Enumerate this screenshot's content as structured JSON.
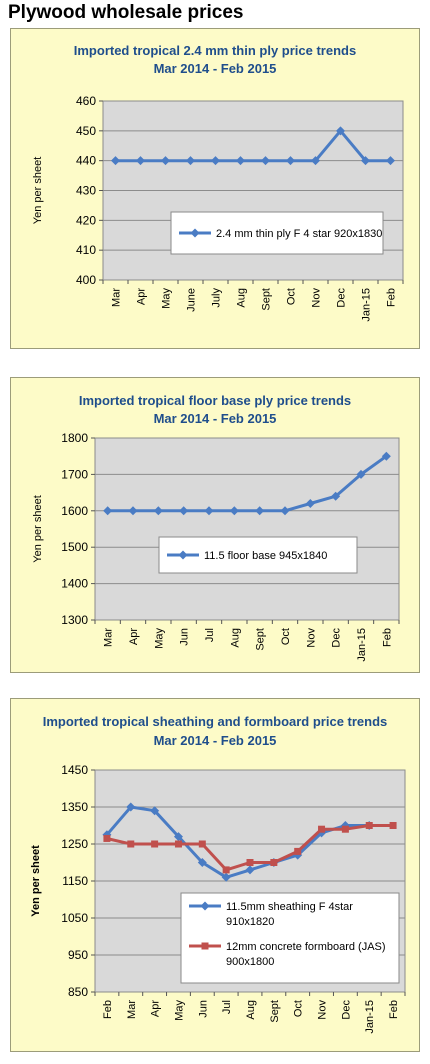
{
  "page": {
    "title": "Plywood wholesale prices"
  },
  "colors": {
    "blue": "#4a7cc4",
    "red": "#c0504d",
    "plot_bg": "#d9d9d9",
    "panel_bg": "#fdfbc8",
    "title_color": "#1f4e8c"
  },
  "chart_data": [
    {
      "type": "line",
      "title": "Imported tropical 2.4 mm thin ply price trends",
      "subtitle": "Mar 2014 - Feb 2015",
      "ylabel": "Yen per sheet",
      "ylim": [
        400,
        460
      ],
      "yticks": [
        400,
        410,
        420,
        430,
        440,
        450,
        460
      ],
      "categories": [
        "Mar",
        "Apr",
        "May",
        "June",
        "July",
        "Aug",
        "Sept",
        "Oct",
        "Nov",
        "Dec",
        "Jan-15",
        "Feb"
      ],
      "series": [
        {
          "name": "2.4 mm thin ply F 4 star 920x1830",
          "color": "#4a7cc4",
          "marker": "diamond",
          "values": [
            440,
            440,
            440,
            440,
            440,
            440,
            440,
            440,
            440,
            450,
            440,
            440
          ]
        }
      ],
      "legend": "center-right",
      "grid": true
    },
    {
      "type": "line",
      "title": "Imported tropical floor base ply price trends",
      "subtitle": "Mar 2014 - Feb 2015",
      "ylabel": "Yen per sheet",
      "ylim": [
        1300,
        1800
      ],
      "yticks": [
        1300,
        1400,
        1500,
        1600,
        1700,
        1800
      ],
      "categories": [
        "Mar",
        "Apr",
        "May",
        "Jun",
        "Jul",
        "Aug",
        "Sept",
        "Oct",
        "Nov",
        "Dec",
        "Jan-15",
        "Feb"
      ],
      "series": [
        {
          "name": "11.5 floor base 945x1840",
          "color": "#4a7cc4",
          "marker": "diamond",
          "values": [
            1600,
            1600,
            1600,
            1600,
            1600,
            1600,
            1600,
            1600,
            1620,
            1640,
            1700,
            1750
          ]
        }
      ],
      "legend": "center",
      "grid": true
    },
    {
      "type": "line",
      "title": "Imported tropical sheathing and formboard price trends",
      "subtitle": "Mar 2014 - Feb 2015",
      "ylabel": "Yen per sheet",
      "ylim": [
        850,
        1450
      ],
      "yticks": [
        850,
        950,
        1050,
        1150,
        1250,
        1350,
        1450
      ],
      "categories": [
        "Feb",
        "Mar",
        "Apr",
        "May",
        "Jun",
        "Jul",
        "Aug",
        "Sept",
        "Oct",
        "Nov",
        "Dec",
        "Jan-15",
        "Feb"
      ],
      "series": [
        {
          "name": "11.5mm sheathing F 4star 910x1820",
          "color": "#4a7cc4",
          "marker": "diamond",
          "values": [
            1275,
            1350,
            1340,
            1270,
            1200,
            1160,
            1180,
            1200,
            1220,
            1280,
            1300,
            1300,
            null
          ]
        },
        {
          "name": "12mm concrete formboard (JAS) 900x1800",
          "color": "#c0504d",
          "marker": "square",
          "values": [
            1265,
            1250,
            1250,
            1250,
            1250,
            1180,
            1200,
            1200,
            1230,
            1290,
            1290,
            1300,
            1300
          ]
        }
      ],
      "legend": "bottom-right",
      "grid": true
    }
  ]
}
